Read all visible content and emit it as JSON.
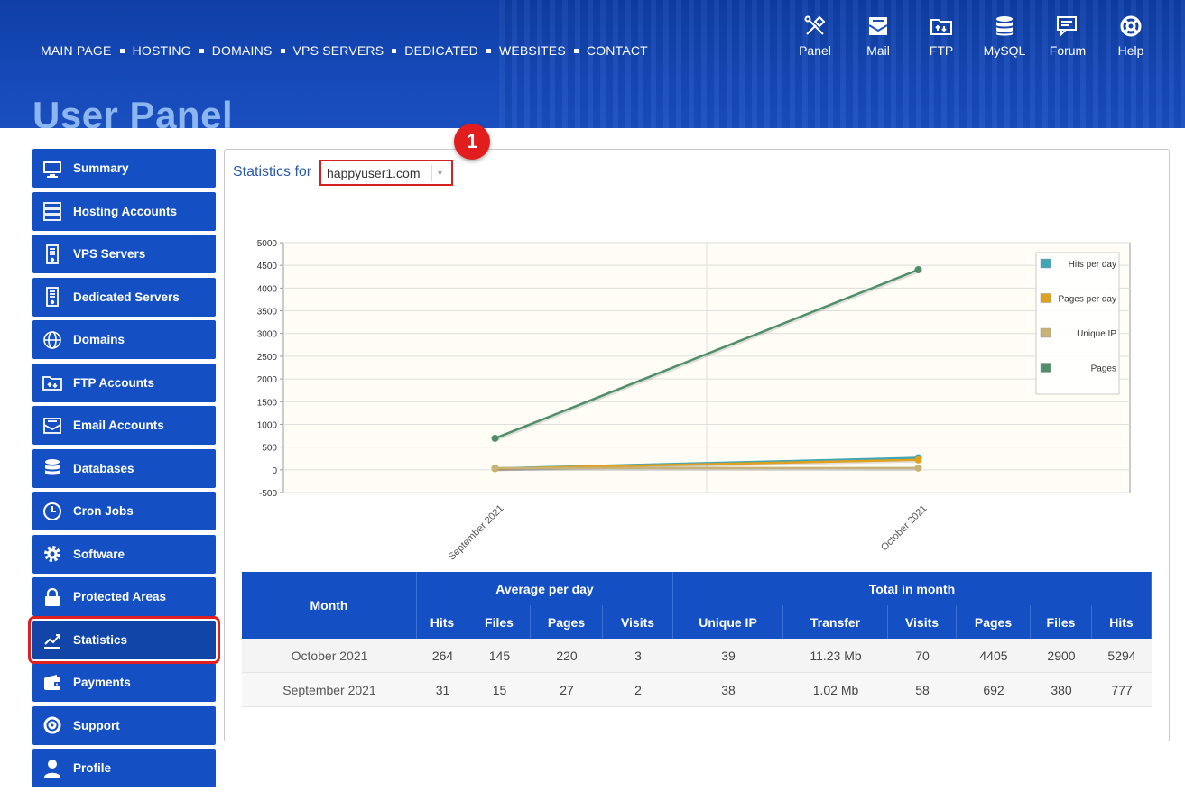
{
  "header": {
    "nav": [
      "MAIN PAGE",
      "HOSTING",
      "DOMAINS",
      "VPS SERVERS",
      "DEDICATED",
      "WEBSITES",
      "CONTACT"
    ],
    "tools": [
      {
        "label": "Panel",
        "icon": "tools-icon"
      },
      {
        "label": "Mail",
        "icon": "mail-icon"
      },
      {
        "label": "FTP",
        "icon": "ftp-folder-icon"
      },
      {
        "label": "MySQL",
        "icon": "database-icon"
      },
      {
        "label": "Forum",
        "icon": "forum-icon"
      },
      {
        "label": "Help",
        "icon": "lifebuoy-icon"
      }
    ],
    "page_title": "User Panel"
  },
  "sidebar": {
    "items": [
      {
        "label": "Summary",
        "icon": "monitor-icon"
      },
      {
        "label": "Hosting Accounts",
        "icon": "server-icon"
      },
      {
        "label": "VPS Servers",
        "icon": "vps-icon"
      },
      {
        "label": "Dedicated Servers",
        "icon": "dedicated-icon"
      },
      {
        "label": "Domains",
        "icon": "www-globe-icon"
      },
      {
        "label": "FTP Accounts",
        "icon": "ftp-folder-icon"
      },
      {
        "label": "Email Accounts",
        "icon": "envelope-icon"
      },
      {
        "label": "Databases",
        "icon": "database-icon"
      },
      {
        "label": "Cron Jobs",
        "icon": "clock-icon"
      },
      {
        "label": "Software",
        "icon": "gear-icon"
      },
      {
        "label": "Protected Areas",
        "icon": "lock-icon"
      },
      {
        "label": "Statistics",
        "icon": "chart-icon"
      },
      {
        "label": "Payments",
        "icon": "wallet-icon"
      },
      {
        "label": "Support",
        "icon": "lifebuoy-icon"
      },
      {
        "label": "Profile",
        "icon": "user-icon"
      }
    ],
    "active": "Statistics"
  },
  "stats": {
    "label": "Statistics for",
    "domain": "happyuser1.com",
    "badge": "1"
  },
  "chart_data": {
    "type": "line",
    "categories": [
      "September 2021",
      "October 2021"
    ],
    "series": [
      {
        "name": "Hits per day",
        "values": [
          31,
          264
        ],
        "color": "#3fa6b5"
      },
      {
        "name": "Pages per day",
        "values": [
          27,
          220
        ],
        "color": "#e0a020"
      },
      {
        "name": "Unique IP",
        "values": [
          38,
          39
        ],
        "color": "#c8b277"
      },
      {
        "name": "Pages",
        "values": [
          692,
          4405
        ],
        "color": "#4e8e6a"
      }
    ],
    "ylim": [
      -500,
      5000
    ],
    "yticks": [
      "5000",
      "4500",
      "4000",
      "3500",
      "3000",
      "2500",
      "2000",
      "1500",
      "1000",
      "500",
      "0",
      "-500"
    ],
    "legend": "top-right",
    "grid": true
  },
  "table": {
    "month_header": "Month",
    "group_avg": "Average per day",
    "group_total": "Total in month",
    "columns": [
      "Hits",
      "Files",
      "Pages",
      "Visits",
      "Unique IP",
      "Transfer",
      "Visits",
      "Pages",
      "Files",
      "Hits"
    ],
    "rows": [
      {
        "month": "October 2021",
        "cells": [
          "264",
          "145",
          "220",
          "3",
          "39",
          "11.23 Mb",
          "70",
          "4405",
          "2900",
          "5294"
        ]
      },
      {
        "month": "September 2021",
        "cells": [
          "31",
          "15",
          "27",
          "2",
          "38",
          "1.02 Mb",
          "58",
          "692",
          "380",
          "777"
        ]
      }
    ]
  }
}
